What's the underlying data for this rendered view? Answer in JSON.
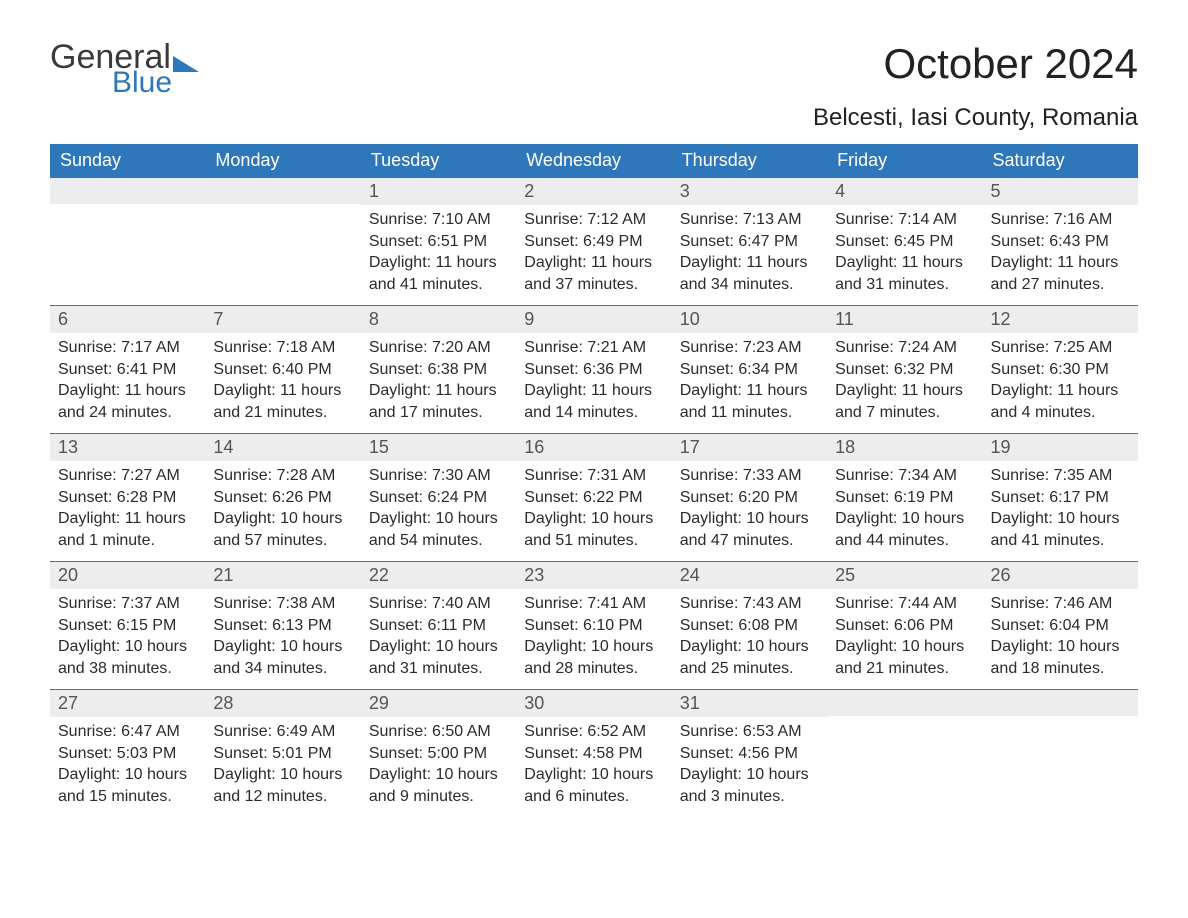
{
  "brand": {
    "general": "General",
    "blue": "Blue"
  },
  "title": "October 2024",
  "location": "Belcesti, Iasi County, Romania",
  "colors": {
    "accent": "#2f77bb",
    "header_text": "#ffffff",
    "daynum_bg": "#ecedee",
    "daynum_text": "#555555",
    "body_text": "#2b2b2b",
    "background": "#ffffff"
  },
  "typography": {
    "title_fontsize": 42,
    "location_fontsize": 24,
    "weekday_fontsize": 18,
    "daynum_fontsize": 18,
    "body_fontsize": 16
  },
  "weekdays": [
    "Sunday",
    "Monday",
    "Tuesday",
    "Wednesday",
    "Thursday",
    "Friday",
    "Saturday"
  ],
  "weeks": [
    [
      {
        "n": null
      },
      {
        "n": null
      },
      {
        "n": 1,
        "sunrise": "7:10 AM",
        "sunset": "6:51 PM",
        "daylight": "11 hours and 41 minutes."
      },
      {
        "n": 2,
        "sunrise": "7:12 AM",
        "sunset": "6:49 PM",
        "daylight": "11 hours and 37 minutes."
      },
      {
        "n": 3,
        "sunrise": "7:13 AM",
        "sunset": "6:47 PM",
        "daylight": "11 hours and 34 minutes."
      },
      {
        "n": 4,
        "sunrise": "7:14 AM",
        "sunset": "6:45 PM",
        "daylight": "11 hours and 31 minutes."
      },
      {
        "n": 5,
        "sunrise": "7:16 AM",
        "sunset": "6:43 PM",
        "daylight": "11 hours and 27 minutes."
      }
    ],
    [
      {
        "n": 6,
        "sunrise": "7:17 AM",
        "sunset": "6:41 PM",
        "daylight": "11 hours and 24 minutes."
      },
      {
        "n": 7,
        "sunrise": "7:18 AM",
        "sunset": "6:40 PM",
        "daylight": "11 hours and 21 minutes."
      },
      {
        "n": 8,
        "sunrise": "7:20 AM",
        "sunset": "6:38 PM",
        "daylight": "11 hours and 17 minutes."
      },
      {
        "n": 9,
        "sunrise": "7:21 AM",
        "sunset": "6:36 PM",
        "daylight": "11 hours and 14 minutes."
      },
      {
        "n": 10,
        "sunrise": "7:23 AM",
        "sunset": "6:34 PM",
        "daylight": "11 hours and 11 minutes."
      },
      {
        "n": 11,
        "sunrise": "7:24 AM",
        "sunset": "6:32 PM",
        "daylight": "11 hours and 7 minutes."
      },
      {
        "n": 12,
        "sunrise": "7:25 AM",
        "sunset": "6:30 PM",
        "daylight": "11 hours and 4 minutes."
      }
    ],
    [
      {
        "n": 13,
        "sunrise": "7:27 AM",
        "sunset": "6:28 PM",
        "daylight": "11 hours and 1 minute."
      },
      {
        "n": 14,
        "sunrise": "7:28 AM",
        "sunset": "6:26 PM",
        "daylight": "10 hours and 57 minutes."
      },
      {
        "n": 15,
        "sunrise": "7:30 AM",
        "sunset": "6:24 PM",
        "daylight": "10 hours and 54 minutes."
      },
      {
        "n": 16,
        "sunrise": "7:31 AM",
        "sunset": "6:22 PM",
        "daylight": "10 hours and 51 minutes."
      },
      {
        "n": 17,
        "sunrise": "7:33 AM",
        "sunset": "6:20 PM",
        "daylight": "10 hours and 47 minutes."
      },
      {
        "n": 18,
        "sunrise": "7:34 AM",
        "sunset": "6:19 PM",
        "daylight": "10 hours and 44 minutes."
      },
      {
        "n": 19,
        "sunrise": "7:35 AM",
        "sunset": "6:17 PM",
        "daylight": "10 hours and 41 minutes."
      }
    ],
    [
      {
        "n": 20,
        "sunrise": "7:37 AM",
        "sunset": "6:15 PM",
        "daylight": "10 hours and 38 minutes."
      },
      {
        "n": 21,
        "sunrise": "7:38 AM",
        "sunset": "6:13 PM",
        "daylight": "10 hours and 34 minutes."
      },
      {
        "n": 22,
        "sunrise": "7:40 AM",
        "sunset": "6:11 PM",
        "daylight": "10 hours and 31 minutes."
      },
      {
        "n": 23,
        "sunrise": "7:41 AM",
        "sunset": "6:10 PM",
        "daylight": "10 hours and 28 minutes."
      },
      {
        "n": 24,
        "sunrise": "7:43 AM",
        "sunset": "6:08 PM",
        "daylight": "10 hours and 25 minutes."
      },
      {
        "n": 25,
        "sunrise": "7:44 AM",
        "sunset": "6:06 PM",
        "daylight": "10 hours and 21 minutes."
      },
      {
        "n": 26,
        "sunrise": "7:46 AM",
        "sunset": "6:04 PM",
        "daylight": "10 hours and 18 minutes."
      }
    ],
    [
      {
        "n": 27,
        "sunrise": "6:47 AM",
        "sunset": "5:03 PM",
        "daylight": "10 hours and 15 minutes."
      },
      {
        "n": 28,
        "sunrise": "6:49 AM",
        "sunset": "5:01 PM",
        "daylight": "10 hours and 12 minutes."
      },
      {
        "n": 29,
        "sunrise": "6:50 AM",
        "sunset": "5:00 PM",
        "daylight": "10 hours and 9 minutes."
      },
      {
        "n": 30,
        "sunrise": "6:52 AM",
        "sunset": "4:58 PM",
        "daylight": "10 hours and 6 minutes."
      },
      {
        "n": 31,
        "sunrise": "6:53 AM",
        "sunset": "4:56 PM",
        "daylight": "10 hours and 3 minutes."
      },
      {
        "n": null
      },
      {
        "n": null
      }
    ]
  ],
  "labels": {
    "sunrise": "Sunrise:",
    "sunset": "Sunset:",
    "daylight": "Daylight:"
  }
}
